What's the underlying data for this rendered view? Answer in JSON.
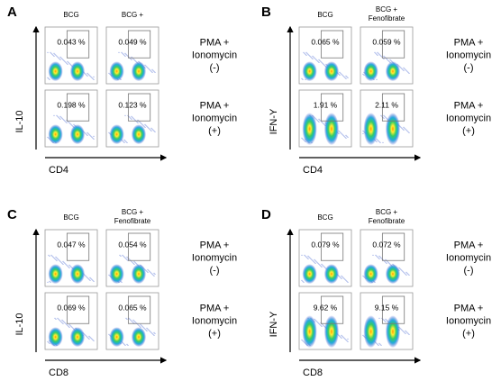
{
  "panels": [
    {
      "letter": "A",
      "columns": [
        [
          "BCG"
        ],
        [
          "BCG +"
        ]
      ],
      "y_label": "IL-10",
      "x_label": "CD4",
      "rows": [
        {
          "condition": [
            "PMA +",
            "Ionomycin",
            "(-)"
          ],
          "gates": [
            "0.043 %",
            "0.049 %"
          ]
        },
        {
          "condition": [
            "PMA +",
            "Ionomycin",
            "(+)"
          ],
          "gates": [
            "0.198 %",
            "0.123 %"
          ]
        }
      ]
    },
    {
      "letter": "B",
      "columns": [
        [
          "BCG"
        ],
        [
          "BCG +",
          "Fenofibrate"
        ]
      ],
      "y_label": "IFN-Y",
      "x_label": "CD4",
      "rows": [
        {
          "condition": [
            "PMA +",
            "Ionomycin",
            "(-)"
          ],
          "gates": [
            "0.065 %",
            "0.059 %"
          ]
        },
        {
          "condition": [
            "PMA +",
            "Ionomycin",
            "(+)"
          ],
          "gates": [
            "1.91 %",
            "2.11 %"
          ]
        }
      ]
    },
    {
      "letter": "C",
      "columns": [
        [
          "BCG"
        ],
        [
          "BCG +",
          "Fenofibrate"
        ]
      ],
      "y_label": "IL-10",
      "x_label": "CD8",
      "rows": [
        {
          "condition": [
            "PMA +",
            "Ionomycin",
            "(-)"
          ],
          "gates": [
            "0.047 %",
            "0.054 %"
          ]
        },
        {
          "condition": [
            "PMA +",
            "Ionomycin",
            "(+)"
          ],
          "gates": [
            "0.069 %",
            "0.065 %"
          ]
        }
      ]
    },
    {
      "letter": "D",
      "columns": [
        [
          "BCG"
        ],
        [
          "BCG +",
          "Fenofibrate"
        ]
      ],
      "y_label": "IFN-Y",
      "x_label": "CD8",
      "rows": [
        {
          "condition": [
            "PMA +",
            "Ionomycin",
            "(-)"
          ],
          "gates": [
            "0.079 %",
            "0.072 %"
          ]
        },
        {
          "condition": [
            "PMA +",
            "Ionomycin",
            "(+)"
          ],
          "gates": [
            "9.62 %",
            "9.15 %"
          ]
        }
      ]
    }
  ]
}
